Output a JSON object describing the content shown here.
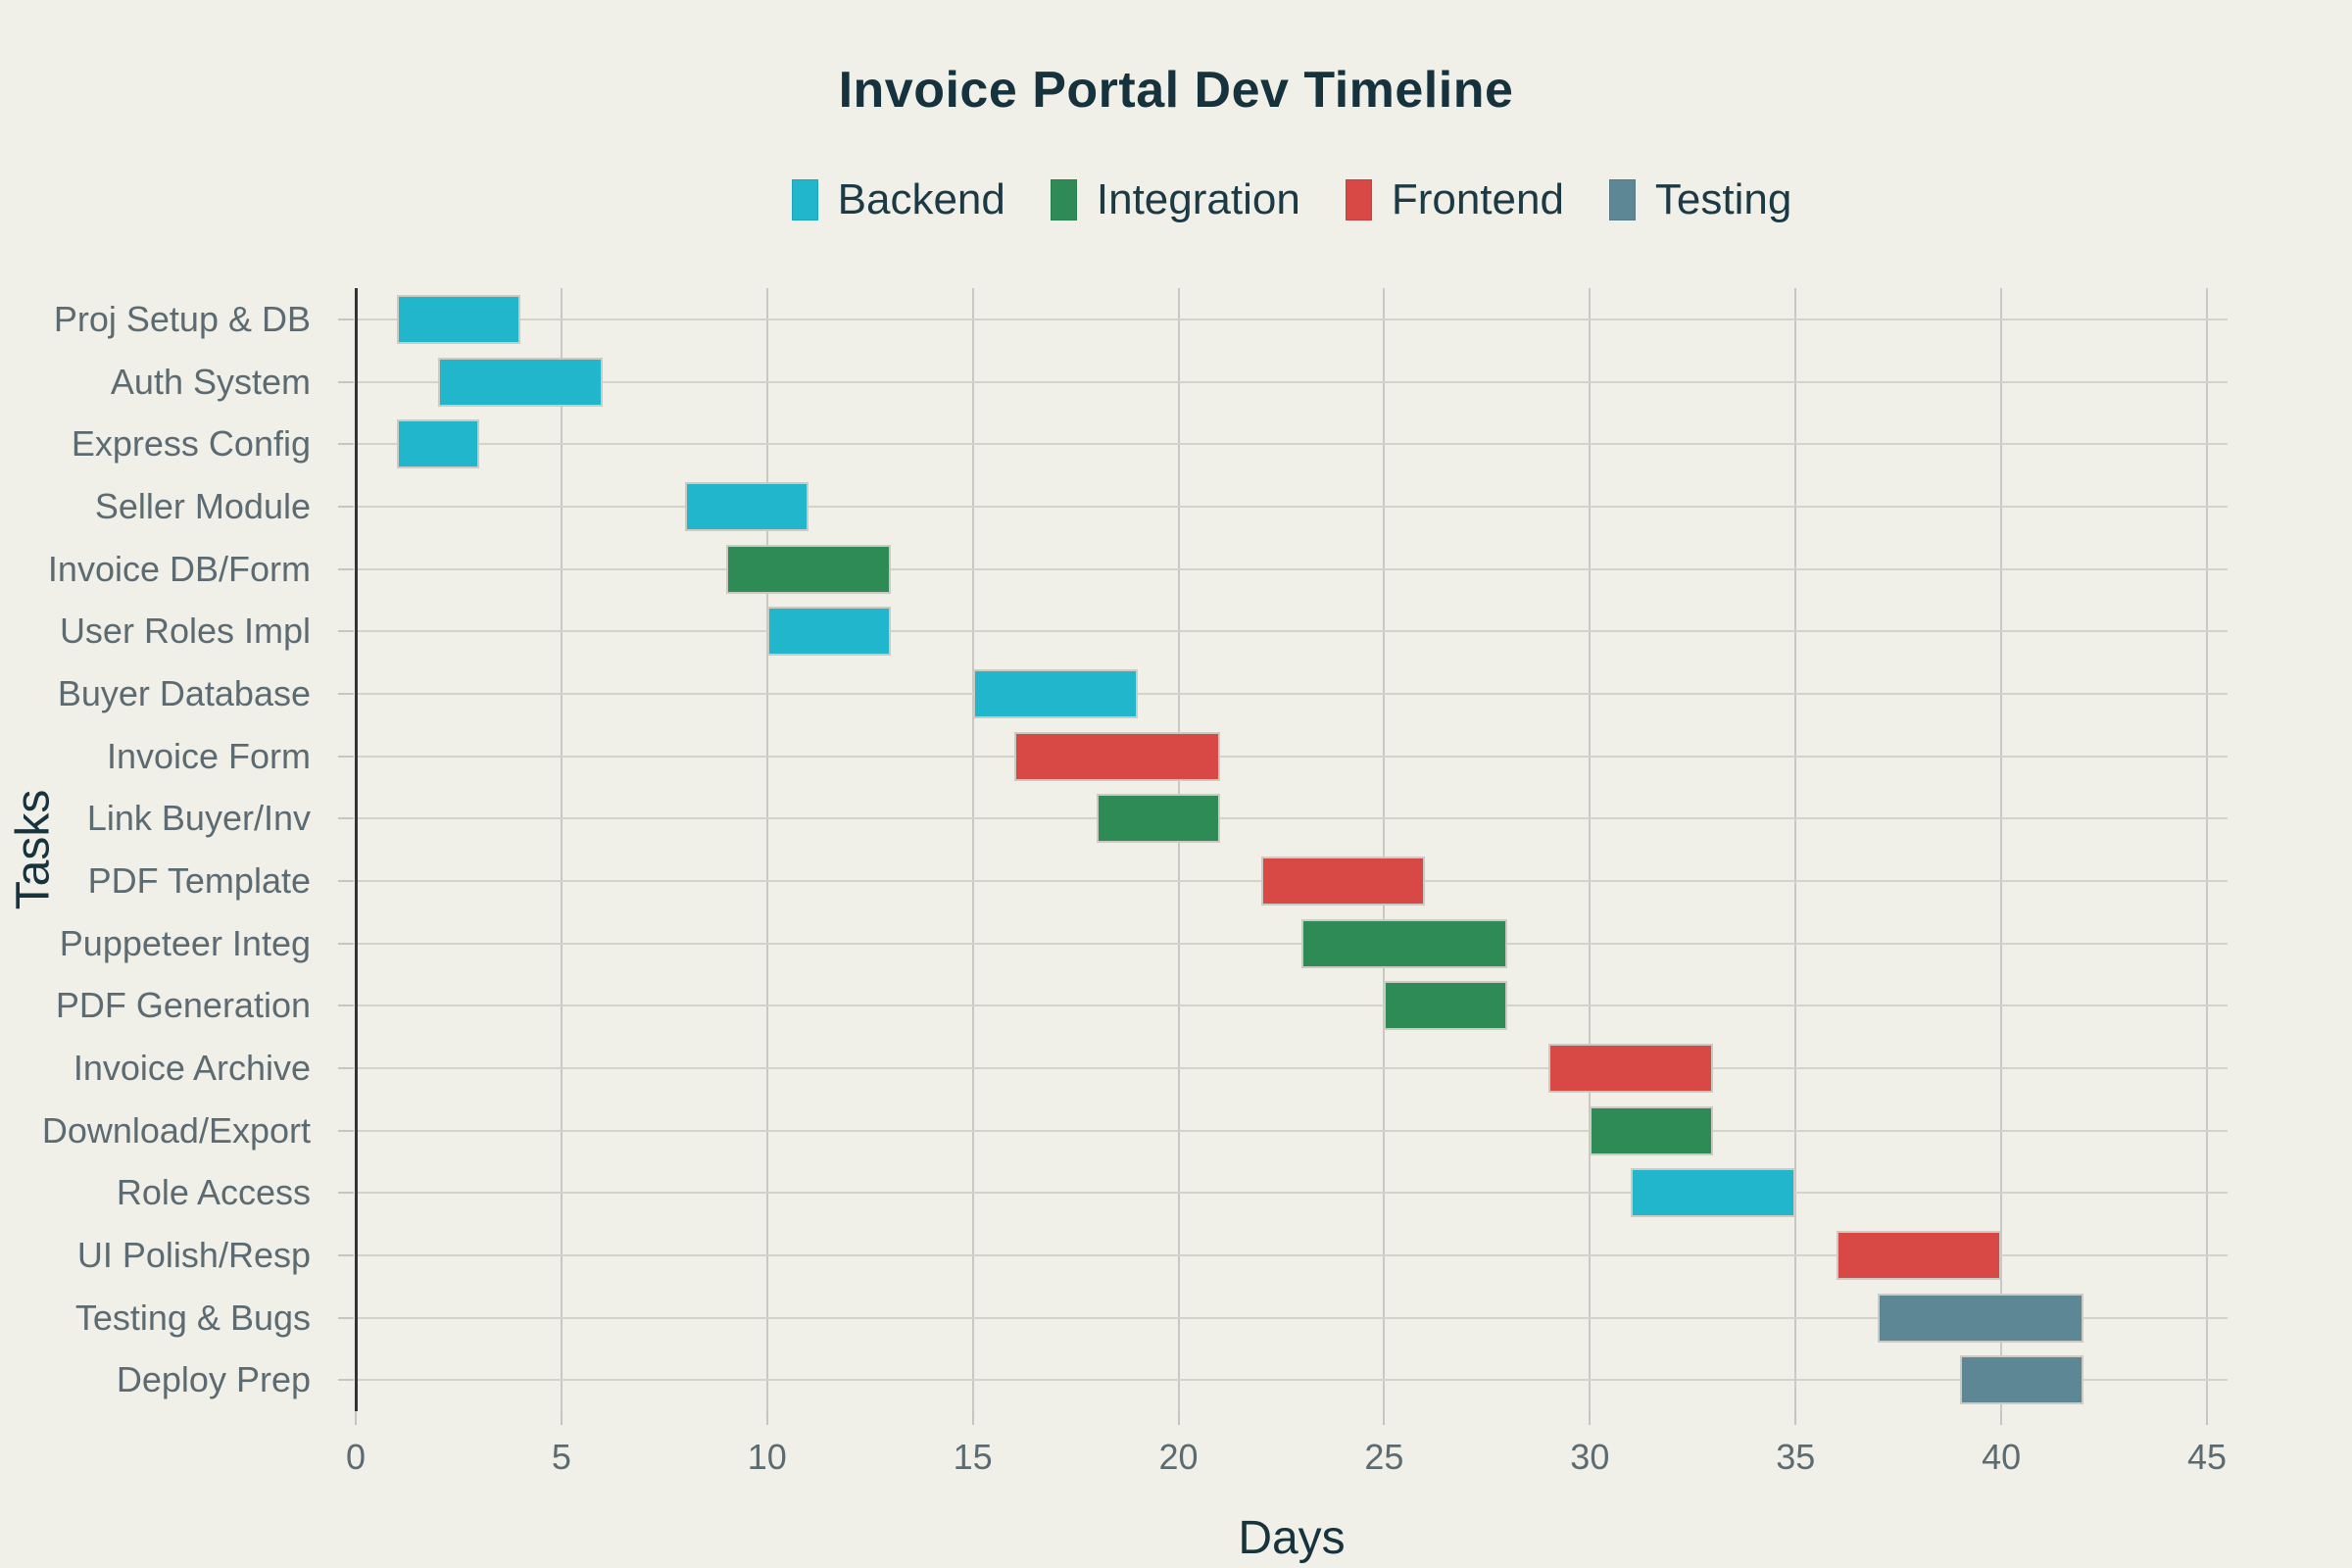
{
  "title": "Invoice Portal Dev Timeline",
  "chart_data": {
    "type": "bar",
    "subtype": "horizontal-gantt",
    "title": "Invoice Portal Dev Timeline",
    "xlabel": "Days",
    "ylabel": "Tasks",
    "xlim": [
      0,
      45.5
    ],
    "xticks": [
      0,
      5,
      10,
      15,
      20,
      25,
      30,
      35,
      40,
      45
    ],
    "grid": true,
    "legend_position": "top-center",
    "legend": [
      {
        "label": "Backend",
        "color": "#21b6cc"
      },
      {
        "label": "Integration",
        "color": "#2e8b55"
      },
      {
        "label": "Frontend",
        "color": "#d84845"
      },
      {
        "label": "Testing",
        "color": "#5e8795"
      }
    ],
    "tasks": [
      {
        "name": "Proj Setup & DB",
        "category": "Backend",
        "start": 1,
        "end": 4,
        "duration": 3
      },
      {
        "name": "Auth System",
        "category": "Backend",
        "start": 2,
        "end": 6,
        "duration": 4
      },
      {
        "name": "Express Config",
        "category": "Backend",
        "start": 1,
        "end": 3,
        "duration": 2
      },
      {
        "name": "Seller Module",
        "category": "Backend",
        "start": 8,
        "end": 11,
        "duration": 3
      },
      {
        "name": "Invoice DB/Form",
        "category": "Integration",
        "start": 9,
        "end": 13,
        "duration": 4
      },
      {
        "name": "User Roles Impl",
        "category": "Backend",
        "start": 10,
        "end": 13,
        "duration": 3
      },
      {
        "name": "Buyer Database",
        "category": "Backend",
        "start": 15,
        "end": 19,
        "duration": 4
      },
      {
        "name": "Invoice Form",
        "category": "Frontend",
        "start": 16,
        "end": 21,
        "duration": 5
      },
      {
        "name": "Link Buyer/Inv",
        "category": "Integration",
        "start": 18,
        "end": 21,
        "duration": 3
      },
      {
        "name": "PDF Template",
        "category": "Frontend",
        "start": 22,
        "end": 26,
        "duration": 4
      },
      {
        "name": "Puppeteer Integ",
        "category": "Integration",
        "start": 23,
        "end": 28,
        "duration": 5
      },
      {
        "name": "PDF Generation",
        "category": "Integration",
        "start": 25,
        "end": 28,
        "duration": 3
      },
      {
        "name": "Invoice Archive",
        "category": "Frontend",
        "start": 29,
        "end": 33,
        "duration": 4
      },
      {
        "name": "Download/Export",
        "category": "Integration",
        "start": 30,
        "end": 33,
        "duration": 3
      },
      {
        "name": "Role Access",
        "category": "Backend",
        "start": 31,
        "end": 35,
        "duration": 4
      },
      {
        "name": "UI Polish/Resp",
        "category": "Frontend",
        "start": 36,
        "end": 40,
        "duration": 4
      },
      {
        "name": "Testing & Bugs",
        "category": "Testing",
        "start": 37,
        "end": 42,
        "duration": 5
      },
      {
        "name": "Deploy Prep",
        "category": "Testing",
        "start": 39,
        "end": 42,
        "duration": 3
      }
    ]
  },
  "colors": {
    "background": "#f0f0e9",
    "title_text": "#15323d",
    "legend_text": "#1c3a45",
    "label_text": "#5c6b71",
    "axis_title_text": "#16333e",
    "horizontal_gridline": "#d3d3cc",
    "vertical_gridline": "#c9c9c3",
    "axis_spine": "#333333",
    "tick_mark": "#c6c6c0",
    "bar_border": "#cbcbc4"
  }
}
